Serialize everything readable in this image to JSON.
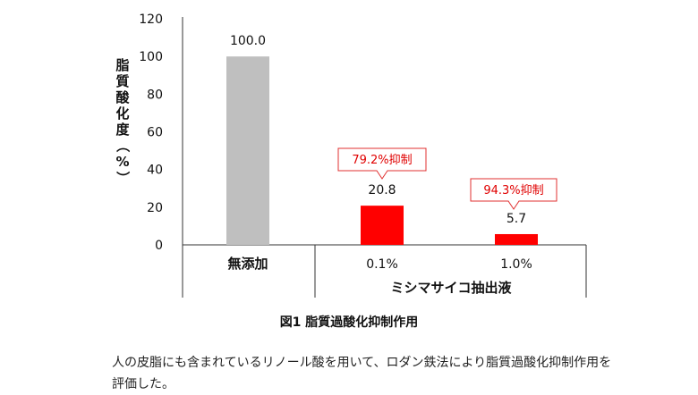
{
  "chart_data": {
    "type": "bar",
    "ylabel": "脂質酸化度（%）",
    "ylim": [
      0,
      120
    ],
    "yticks": [
      0,
      20,
      40,
      60,
      80,
      100,
      120
    ],
    "grid": false,
    "categories": [
      "無添加",
      "0.1%",
      "1.0%"
    ],
    "values": [
      100.0,
      20.8,
      5.7
    ],
    "value_labels": [
      "100.0",
      "20.8",
      "5.7"
    ],
    "bar_colors": [
      "#bfbfbf",
      "#ff0000",
      "#ff0000"
    ],
    "group_label": "ミシマサイコ抽出液",
    "annotations": [
      {
        "category": "0.1%",
        "text": "79.2%抑制"
      },
      {
        "category": "1.0%",
        "text": "94.3%抑制"
      }
    ]
  },
  "caption": "図1 脂質過酸化抑制作用",
  "description": "人の皮脂にも含まれているリノール酸を用いて、ロダン鉄法により脂質過酸化抑制作用を評価した。"
}
